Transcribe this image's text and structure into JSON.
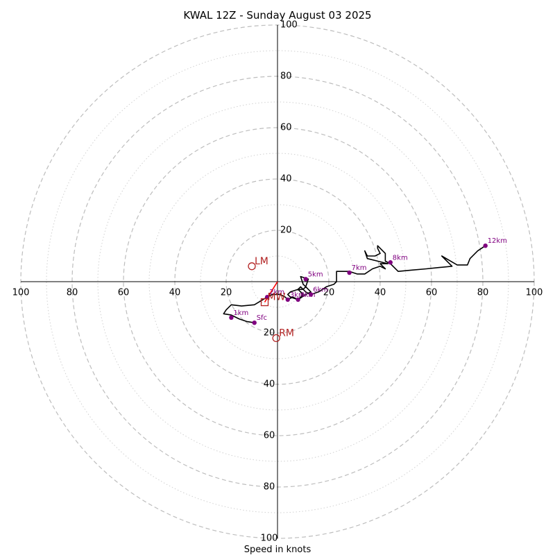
{
  "chart_data": {
    "type": "hodograph",
    "title": "KWAL 12Z - Sunday August 03 2025",
    "xlabel": "Speed in knots",
    "ylabel": "",
    "xlim": [
      -100,
      100
    ],
    "ylim": [
      -100,
      100
    ],
    "grid": true,
    "rings_major": [
      20,
      40,
      60,
      80,
      100
    ],
    "rings_minor": [
      10,
      30,
      50,
      70,
      90
    ],
    "tick_labels": {
      "x_left": [
        "100",
        "80",
        "60",
        "40",
        "20"
      ],
      "x_right": [
        "20",
        "40",
        "60",
        "80",
        "100"
      ],
      "y_top": [
        "100",
        "80",
        "60",
        "40",
        "20"
      ],
      "y_bottom": [
        "20",
        "40",
        "60",
        "80",
        "100"
      ]
    },
    "hodograph_trace": [
      [
        -9,
        -16
      ],
      [
        -12,
        -15.5
      ],
      [
        -15,
        -14.5
      ],
      [
        -18,
        -13
      ],
      [
        -21,
        -12.5
      ],
      [
        -20,
        -11
      ],
      [
        -18,
        -9
      ],
      [
        -14,
        -9.5
      ],
      [
        -9,
        -9
      ],
      [
        -4,
        -6
      ],
      [
        -2,
        -5
      ],
      [
        1,
        -5
      ],
      [
        3,
        -6
      ],
      [
        4,
        -7
      ],
      [
        6,
        -6
      ],
      [
        8,
        -7
      ],
      [
        10,
        -5
      ],
      [
        8,
        -3
      ],
      [
        5,
        -4
      ],
      [
        4,
        -5
      ],
      [
        5,
        -6
      ],
      [
        8,
        -7
      ],
      [
        11,
        -5
      ],
      [
        13,
        -4
      ],
      [
        12,
        -3
      ],
      [
        10,
        -1
      ],
      [
        9,
        2
      ],
      [
        12,
        1
      ],
      [
        11,
        -2
      ],
      [
        10,
        -3
      ],
      [
        9,
        -3
      ],
      [
        8,
        -3
      ],
      [
        9,
        -2
      ],
      [
        11,
        -4
      ],
      [
        13,
        -5
      ],
      [
        16,
        -4
      ],
      [
        19,
        -2
      ],
      [
        22,
        -1
      ],
      [
        23,
        0
      ],
      [
        23,
        4
      ],
      [
        28,
        4
      ],
      [
        31,
        3
      ],
      [
        34,
        3
      ],
      [
        37,
        5
      ],
      [
        40,
        6
      ],
      [
        42,
        5
      ],
      [
        40,
        7
      ],
      [
        43,
        7
      ],
      [
        39,
        8
      ],
      [
        35,
        9
      ],
      [
        34,
        12
      ],
      [
        35,
        10
      ],
      [
        38,
        10
      ],
      [
        40,
        11
      ],
      [
        39,
        13
      ],
      [
        39,
        14
      ],
      [
        42,
        11
      ],
      [
        42,
        8
      ],
      [
        44,
        7
      ],
      [
        45,
        6
      ],
      [
        47,
        4
      ],
      [
        52,
        4.5
      ],
      [
        58,
        5
      ],
      [
        63,
        5.5
      ],
      [
        68,
        6
      ],
      [
        64,
        10
      ],
      [
        70,
        6.5
      ],
      [
        74,
        6.5
      ],
      [
        75,
        9
      ],
      [
        78,
        12
      ],
      [
        81,
        14
      ]
    ],
    "height_markers": [
      {
        "label": "Sfc",
        "u": -9,
        "v": -16
      },
      {
        "label": "1km",
        "u": -18,
        "v": -14
      },
      {
        "label": "2km",
        "u": -4,
        "v": -6
      },
      {
        "label": "3km",
        "u": 4,
        "v": -7
      },
      {
        "label": "4km",
        "u": 8,
        "v": -7
      },
      {
        "label": "5km",
        "u": 11,
        "v": 1
      },
      {
        "label": "6km",
        "u": 13,
        "v": -5
      },
      {
        "label": "7km",
        "u": 28,
        "v": 3.5
      },
      {
        "label": "8km",
        "u": 44,
        "v": 7.5
      },
      {
        "label": "12km",
        "u": 81,
        "v": 14
      }
    ],
    "storm_motion": [
      {
        "label": "LM",
        "u": -10,
        "v": 6,
        "marker": "circle"
      },
      {
        "label": "RM",
        "u": -0.5,
        "v": -22,
        "marker": "circle"
      },
      {
        "label": "MW",
        "u": -5,
        "v": -8,
        "marker": "square"
      }
    ],
    "storm_motion_vector": {
      "from": [
        0,
        0
      ],
      "to": [
        -5,
        -8
      ]
    },
    "colors": {
      "trace": "#000000",
      "markers": "#800080",
      "storm": "#b22222",
      "vector": "#ff0000",
      "grid": "#bdbdbd"
    }
  }
}
